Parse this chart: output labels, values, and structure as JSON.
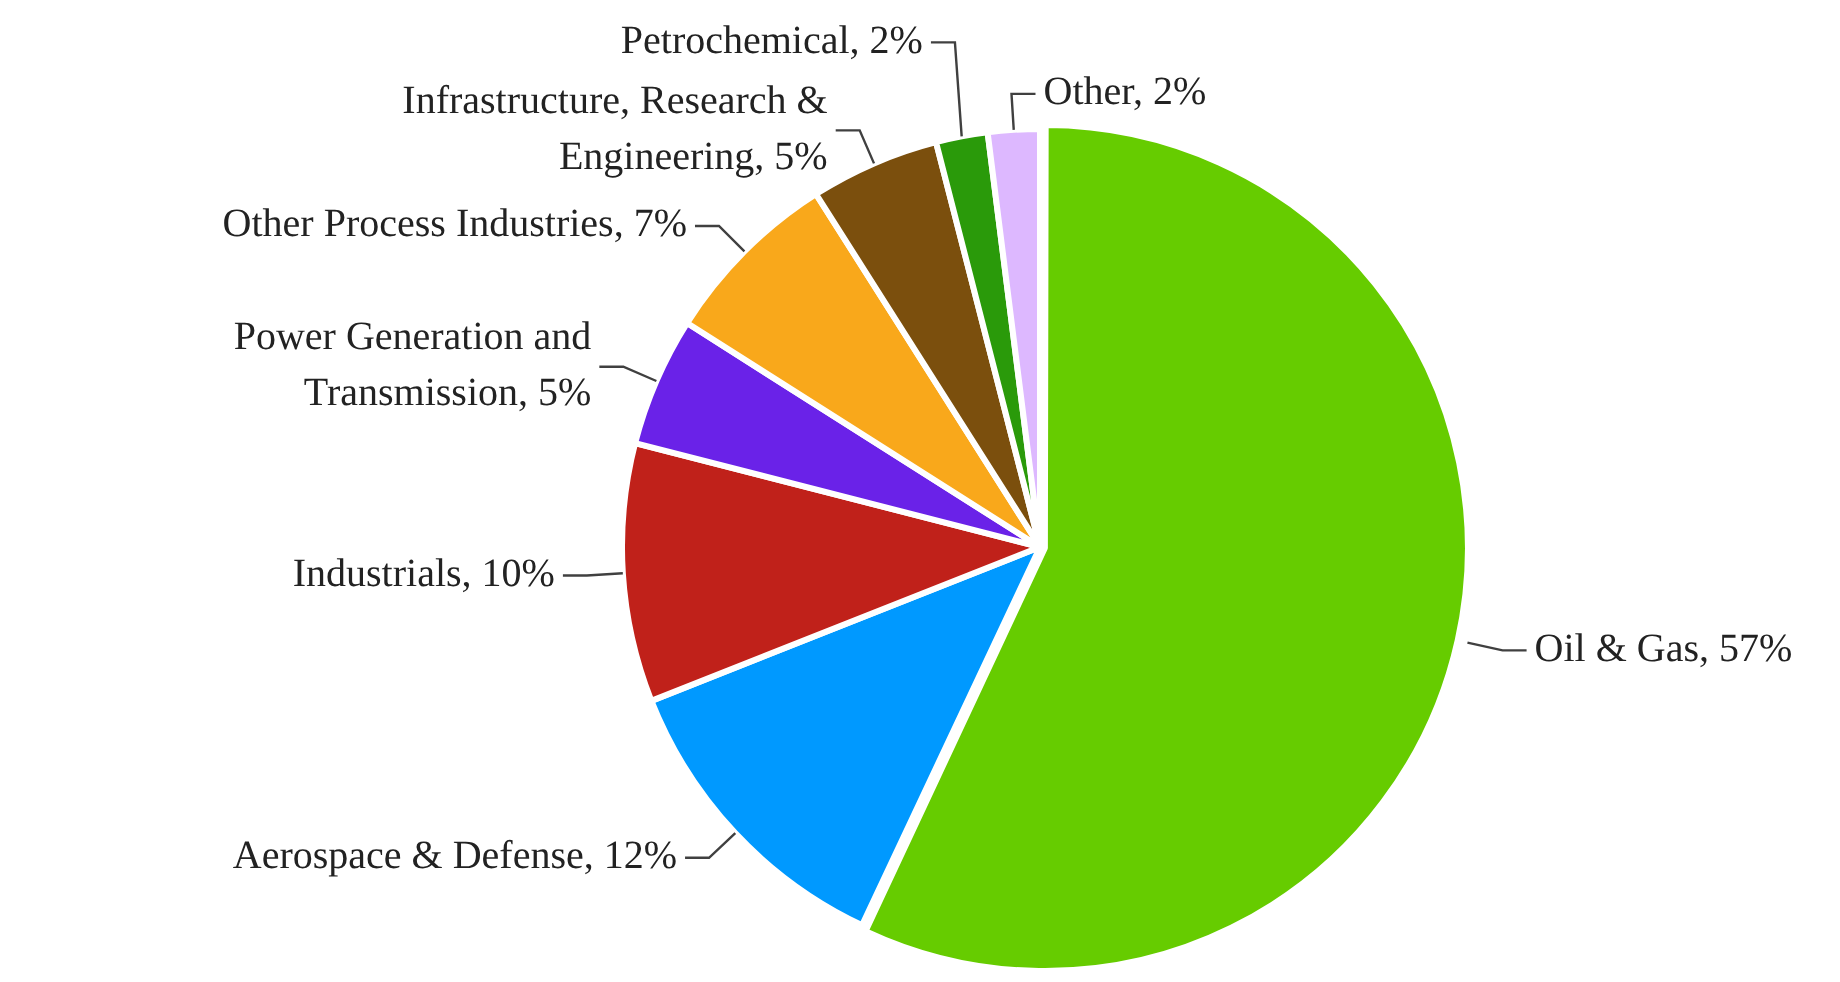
{
  "chart_data": {
    "type": "pie",
    "categories": [
      "Oil & Gas",
      "Aerospace & Defense",
      "Industrials",
      "Power Generation and Transmission",
      "Other Process Industries",
      "Infrastructure, Research & Engineering",
      "Petrochemical",
      "Other"
    ],
    "values": [
      57,
      12,
      10,
      5,
      7,
      5,
      2,
      2
    ],
    "value_labels": [
      "57%",
      "12%",
      "10%",
      "5%",
      "7%",
      "5%",
      "2%",
      "2%"
    ],
    "colors": [
      "#66cc00",
      "#0099ff",
      "#c0211a",
      "#6a22e8",
      "#f9a81b",
      "#7b4f0d",
      "#2a9a0a",
      "#ddb8ff"
    ]
  }
}
